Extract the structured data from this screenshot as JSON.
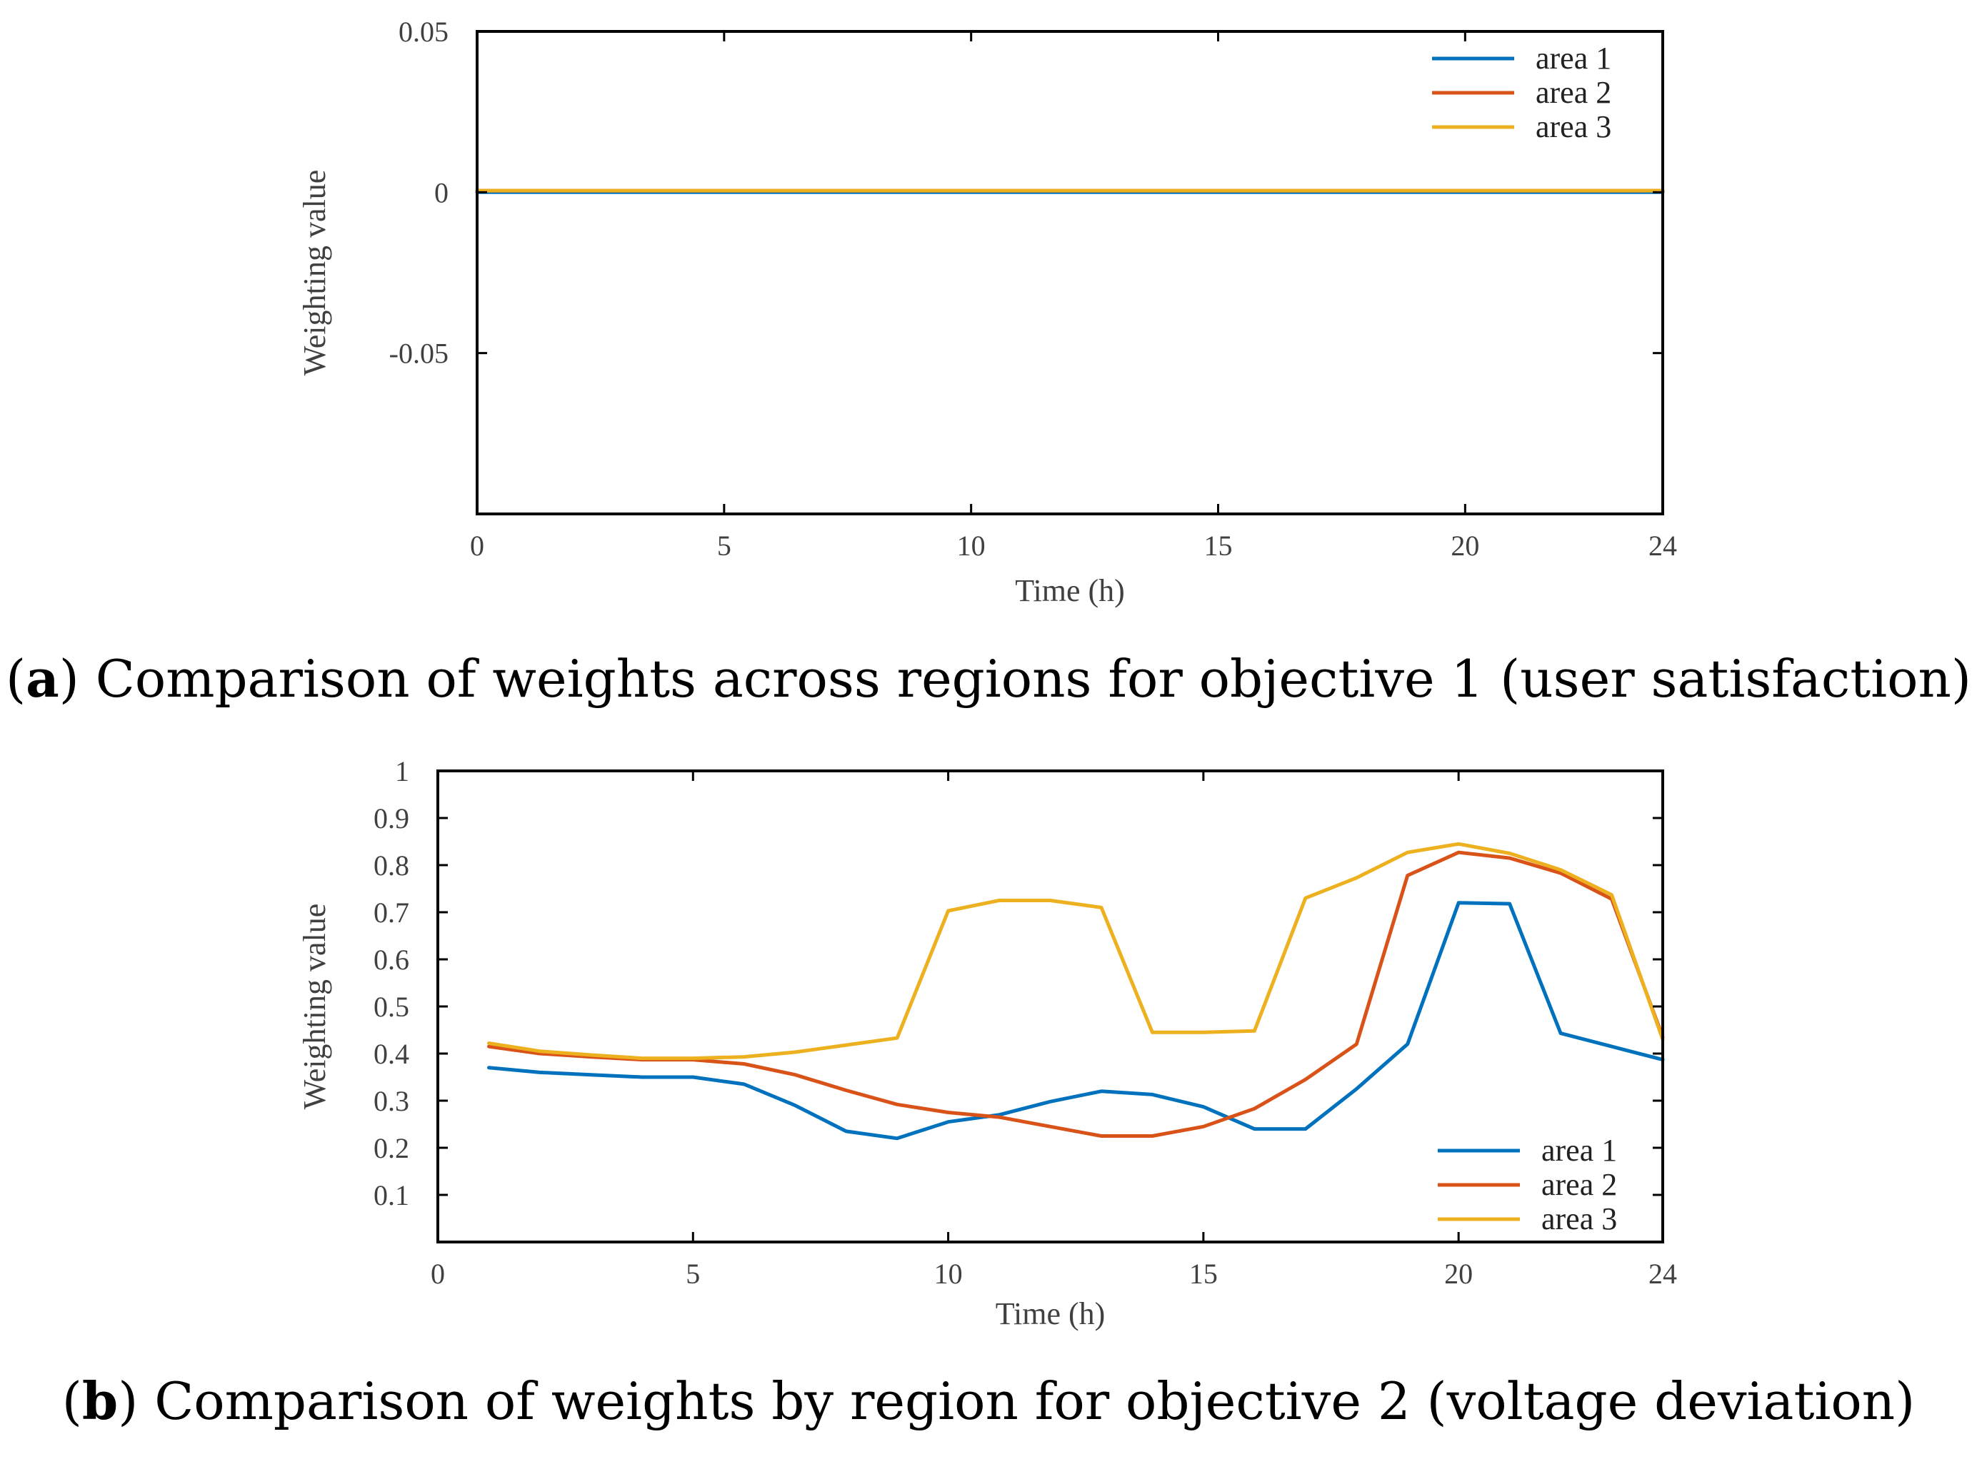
{
  "chart_data": [
    {
      "type": "line",
      "panel_letter": "a",
      "caption": "Comparison of weights across regions for objective 1 (user satisfaction)",
      "xlabel": "Time (h)",
      "ylabel": "Weighting value",
      "xlim": [
        0,
        24
      ],
      "ylim": [
        -0.1,
        0.05
      ],
      "xticks": [
        0,
        5,
        10,
        15,
        20,
        24
      ],
      "yticks": [
        -0.05,
        0,
        0.05
      ],
      "ytick_labels": [
        "-0.05",
        "0",
        "0.05"
      ],
      "legend_position": "top-right",
      "x": [
        0,
        24
      ],
      "series": [
        {
          "name": "area 1",
          "color": "#0072BD",
          "values": [
            0,
            0
          ]
        },
        {
          "name": "area 2",
          "color": "#D95319",
          "values": [
            0.0005,
            0.0005
          ]
        },
        {
          "name": "area 3",
          "color": "#EDB120",
          "values": [
            0.0005,
            0.0005
          ]
        }
      ]
    },
    {
      "type": "line",
      "panel_letter": "b",
      "caption": "Comparison of weights by region for objective 2 (voltage deviation)",
      "xlabel": "Time (h)",
      "ylabel": "Weighting value",
      "xlim": [
        0,
        24
      ],
      "ylim": [
        0,
        1
      ],
      "xticks": [
        0,
        5,
        10,
        15,
        20,
        24
      ],
      "yticks": [
        0.1,
        0.2,
        0.3,
        0.4,
        0.5,
        0.6,
        0.7,
        0.8,
        0.9,
        1
      ],
      "ytick_labels": [
        "0.1",
        "0.2",
        "0.3",
        "0.4",
        "0.5",
        "0.6",
        "0.7",
        "0.8",
        "0.9",
        "1"
      ],
      "legend_position": "bottom-right",
      "x": [
        1,
        2,
        3,
        4,
        5,
        6,
        7,
        8,
        9,
        10,
        11,
        12,
        13,
        14,
        15,
        16,
        17,
        18,
        19,
        20,
        21,
        22,
        23,
        24
      ],
      "series": [
        {
          "name": "area 1",
          "color": "#0072BD",
          "values": [
            0.37,
            0.36,
            0.355,
            0.35,
            0.35,
            0.335,
            0.29,
            0.235,
            0.22,
            0.255,
            0.27,
            0.298,
            0.32,
            0.313,
            0.287,
            0.24,
            0.24,
            0.325,
            0.42,
            0.72,
            0.718,
            0.443,
            0.415,
            0.387
          ]
        },
        {
          "name": "area 2",
          "color": "#D95319",
          "values": [
            0.415,
            0.4,
            0.393,
            0.387,
            0.387,
            0.378,
            0.355,
            0.322,
            0.292,
            0.275,
            0.265,
            0.245,
            0.225,
            0.225,
            0.245,
            0.283,
            0.345,
            0.42,
            0.778,
            0.827,
            0.815,
            0.783,
            0.728,
            0.435
          ]
        },
        {
          "name": "area 3",
          "color": "#EDB120",
          "values": [
            0.422,
            0.405,
            0.397,
            0.39,
            0.39,
            0.393,
            0.403,
            0.418,
            0.433,
            0.703,
            0.725,
            0.725,
            0.71,
            0.445,
            0.445,
            0.448,
            0.73,
            0.773,
            0.827,
            0.845,
            0.825,
            0.79,
            0.737,
            0.43
          ]
        }
      ]
    }
  ]
}
